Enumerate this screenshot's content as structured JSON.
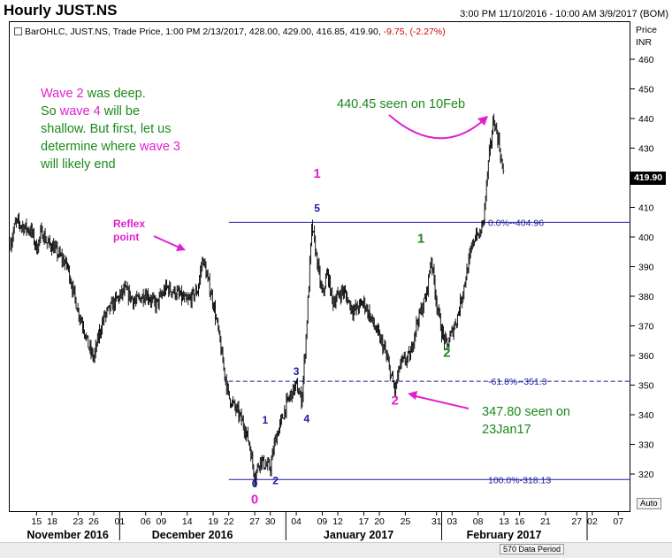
{
  "header": {
    "title": "Hourly JUST.NS",
    "range": "3:00 PM 11/10/2016 - 10:00 AM 3/9/2017 (BOM)"
  },
  "info_line": {
    "prefix": "BarOHLC, JUST.NS, Trade Price, 1:00 PM 2/13/2017, 428.00, 429.00, 416.85, 419.90,",
    "change": "-9.75, (-2.27%)"
  },
  "y_axis": {
    "header_1": "Price",
    "header_2": "INR",
    "current_price": "419.90"
  },
  "notes": {
    "wave2_line1_a": "Wave 2",
    "wave2_line1_b": " was deep.",
    "wave2_line2_a": "So ",
    "wave2_line2_b": "wave 4",
    "wave2_line2_c": " will be",
    "wave2_line3": "shallow. But first, let us",
    "wave2_line4_a": "determine where ",
    "wave2_line4_b": "wave 3",
    "wave2_line5": "will likely end",
    "high_note": "440.45 seen on 10Feb",
    "low_note_1": "347.80 seen on",
    "low_note_2": "23Jan17",
    "reflex_1": "Reflex",
    "reflex_2": "point"
  },
  "footer": {
    "period": "570 Data Period",
    "auto": "Auto"
  },
  "colors": {
    "magenta": "#e020d0",
    "green": "#1a8a1a",
    "navy": "#1a1aa0",
    "red": "#d00000"
  },
  "chart_data": {
    "type": "ohlc",
    "title": "Hourly JUST.NS",
    "ylabel": "Price INR",
    "ylim": [
      312,
      466
    ],
    "yticks": [
      320,
      330,
      340,
      350,
      360,
      370,
      380,
      390,
      400,
      410,
      420,
      430,
      440,
      450,
      460
    ],
    "xticks": [
      {
        "label": "15",
        "x": "2016-11-15"
      },
      {
        "label": "18",
        "x": "2016-11-18"
      },
      {
        "label": "23",
        "x": "2016-11-23"
      },
      {
        "label": "26",
        "x": "2016-11-26"
      },
      {
        "label": "01",
        "x": "2016-12-01"
      },
      {
        "label": "06",
        "x": "2016-12-06"
      },
      {
        "label": "09",
        "x": "2016-12-09"
      },
      {
        "label": "14",
        "x": "2016-12-14"
      },
      {
        "label": "19",
        "x": "2016-12-19"
      },
      {
        "label": "22",
        "x": "2016-12-22"
      },
      {
        "label": "27",
        "x": "2016-12-27"
      },
      {
        "label": "30",
        "x": "2016-12-30"
      },
      {
        "label": "04",
        "x": "2017-01-04"
      },
      {
        "label": "09",
        "x": "2017-01-09"
      },
      {
        "label": "12",
        "x": "2017-01-12"
      },
      {
        "label": "17",
        "x": "2017-01-17"
      },
      {
        "label": "20",
        "x": "2017-01-20"
      },
      {
        "label": "25",
        "x": "2017-01-25"
      },
      {
        "label": "31",
        "x": "2017-01-31"
      },
      {
        "label": "03",
        "x": "2017-02-03"
      },
      {
        "label": "08",
        "x": "2017-02-08"
      },
      {
        "label": "13",
        "x": "2017-02-13"
      },
      {
        "label": "16",
        "x": "2017-02-16"
      },
      {
        "label": "21",
        "x": "2017-02-21"
      },
      {
        "label": "27",
        "x": "2017-02-27"
      },
      {
        "label": "02",
        "x": "2017-03-02"
      },
      {
        "label": "07",
        "x": "2017-03-07"
      }
    ],
    "months": [
      {
        "label": "November 2016",
        "x": "2016-11-21"
      },
      {
        "label": "December 2016",
        "x": "2016-12-15"
      },
      {
        "label": "January 2017",
        "x": "2017-01-16"
      },
      {
        "label": "February 2017",
        "x": "2017-02-13"
      }
    ],
    "month_separators": [
      "2016-12-01",
      "2017-01-02",
      "2017-02-01",
      "2017-03-01"
    ],
    "price_path": [
      [
        "2016-11-10",
        398
      ],
      [
        "2016-11-11",
        405
      ],
      [
        "2016-11-14",
        402
      ],
      [
        "2016-11-15",
        396
      ],
      [
        "2016-11-16",
        402
      ],
      [
        "2016-11-17",
        398
      ],
      [
        "2016-11-18",
        397
      ],
      [
        "2016-11-21",
        390
      ],
      [
        "2016-11-22",
        382
      ],
      [
        "2016-11-23",
        375
      ],
      [
        "2016-11-24",
        370
      ],
      [
        "2016-11-25",
        363
      ],
      [
        "2016-11-26",
        359
      ],
      [
        "2016-11-27",
        367
      ],
      [
        "2016-11-28",
        373
      ],
      [
        "2016-11-30",
        378
      ],
      [
        "2016-12-02",
        382
      ],
      [
        "2016-12-04",
        378
      ],
      [
        "2016-12-06",
        381
      ],
      [
        "2016-12-08",
        377
      ],
      [
        "2016-12-10",
        383
      ],
      [
        "2016-12-12",
        381
      ],
      [
        "2016-12-14",
        378
      ],
      [
        "2016-12-16",
        382
      ],
      [
        "2016-12-17",
        393
      ],
      [
        "2016-12-18",
        385
      ],
      [
        "2016-12-19",
        378
      ],
      [
        "2016-12-20",
        368
      ],
      [
        "2016-12-21",
        356
      ],
      [
        "2016-12-22",
        346
      ],
      [
        "2016-12-23",
        343
      ],
      [
        "2016-12-24",
        340
      ],
      [
        "2016-12-25",
        336
      ],
      [
        "2016-12-26",
        330
      ],
      [
        "2016-12-27",
        319
      ],
      [
        "2016-12-28",
        325
      ],
      [
        "2016-12-29",
        323
      ],
      [
        "2016-12-30",
        322
      ],
      [
        "2016-12-31",
        332
      ],
      [
        "2017-01-01",
        337
      ],
      [
        "2017-01-02",
        343
      ],
      [
        "2017-01-03",
        347
      ],
      [
        "2017-01-04",
        350
      ],
      [
        "2017-01-05",
        345
      ],
      [
        "2017-01-05",
        343
      ],
      [
        "2017-01-06",
        370
      ],
      [
        "2017-01-07",
        404
      ],
      [
        "2017-01-08",
        392
      ],
      [
        "2017-01-09",
        380
      ],
      [
        "2017-01-10",
        388
      ],
      [
        "2017-01-11",
        378
      ],
      [
        "2017-01-13",
        382
      ],
      [
        "2017-01-15",
        375
      ],
      [
        "2017-01-17",
        378
      ],
      [
        "2017-01-19",
        370
      ],
      [
        "2017-01-21",
        362
      ],
      [
        "2017-01-23",
        348
      ],
      [
        "2017-01-24",
        357
      ],
      [
        "2017-01-26",
        360
      ],
      [
        "2017-01-27",
        370
      ],
      [
        "2017-01-29",
        380
      ],
      [
        "2017-01-30",
        393
      ],
      [
        "2017-01-31",
        378
      ],
      [
        "2017-02-01",
        368
      ],
      [
        "2017-02-02",
        363
      ],
      [
        "2017-02-04",
        373
      ],
      [
        "2017-02-05",
        381
      ],
      [
        "2017-02-07",
        398
      ],
      [
        "2017-02-08",
        403
      ],
      [
        "2017-02-08",
        399
      ],
      [
        "2017-02-09",
        405
      ],
      [
        "2017-02-10",
        425
      ],
      [
        "2017-02-11",
        440
      ],
      [
        "2017-02-12",
        432
      ],
      [
        "2017-02-13",
        419
      ]
    ],
    "levels": [
      {
        "label": "0.0%--404.96",
        "value": 404.96,
        "style": "solid",
        "from": "2016-12-22",
        "to": "2017-03-09"
      },
      {
        "label": "-61.8%--351.3",
        "value": 351.3,
        "style": "dashed",
        "from": "2016-12-22",
        "to": "2017-03-09"
      },
      {
        "label": "100.0%-318.13",
        "value": 318.13,
        "style": "solid",
        "from": "2016-12-22",
        "to": "2017-03-09"
      }
    ],
    "wave_labels": [
      {
        "text": "0",
        "color": "blue",
        "x": "2016-12-27",
        "y": 315.5
      },
      {
        "text": "1",
        "color": "blue",
        "x": "2016-12-29",
        "y": 337
      },
      {
        "text": "2",
        "color": "blue",
        "x": "2016-12-31",
        "y": 316.5
      },
      {
        "text": "3",
        "color": "blue",
        "x": "2017-01-04",
        "y": 353.5
      },
      {
        "text": "4",
        "color": "blue",
        "x": "2017-01-06",
        "y": 337.5
      },
      {
        "text": "5",
        "color": "blue",
        "x": "2017-01-08",
        "y": 408.5
      },
      {
        "text": "0",
        "color": "magenta",
        "x": "2016-12-27",
        "y": 310
      },
      {
        "text": "1",
        "color": "magenta",
        "x": "2017-01-08",
        "y": 420
      },
      {
        "text": "2",
        "color": "magenta",
        "x": "2017-01-23",
        "y": 343.5
      },
      {
        "text": "1",
        "color": "green",
        "x": "2017-01-28",
        "y": 398
      },
      {
        "text": "2",
        "color": "green",
        "x": "2017-02-02",
        "y": 359.5
      }
    ]
  }
}
